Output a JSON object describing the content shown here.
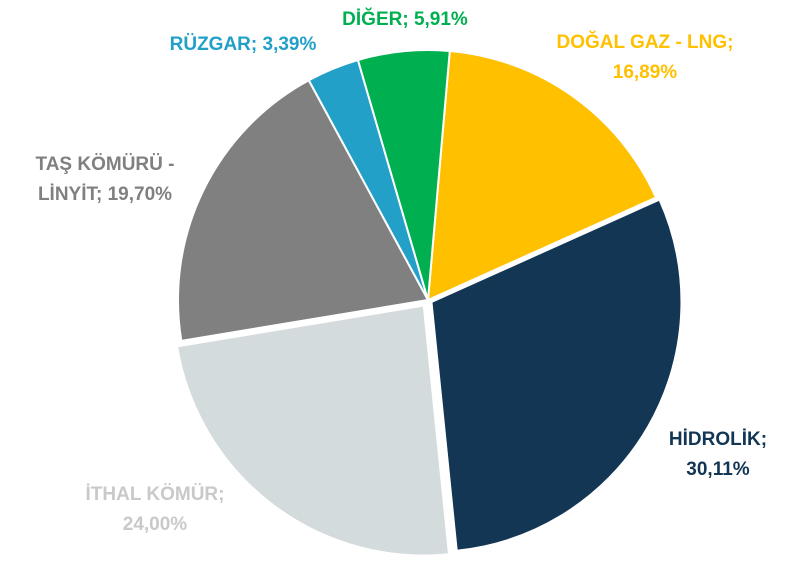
{
  "chart_data": {
    "type": "pie",
    "categories": [
      "DOĞAL GAZ - LNG",
      "HİDROLİK",
      "İTHAL KÖMÜR",
      "TAŞ KÖMÜRÜ - LİNYİT",
      "RÜZGAR",
      "DİĞER"
    ],
    "values": [
      16.89,
      30.11,
      24.0,
      19.7,
      3.39,
      5.91
    ],
    "value_labels": [
      "DOĞAL GAZ - LNG; 16,89%",
      "HİDROLİK; 30,11%",
      "İTHAL KÖMÜR; 24,00%",
      "TAŞ KÖMÜRÜ - LİNYİT; 19,70%",
      "RÜZGAR; 3,39%",
      "DİĞER; 5,91%"
    ],
    "colors": [
      "#FFC000",
      "#123654",
      "#D4DBDD",
      "#808080",
      "#23A0C8",
      "#00B050"
    ],
    "label_colors": [
      "#FFC000",
      "#123654",
      "#C9C9C9",
      "#808080",
      "#23A0C8",
      "#00B050"
    ]
  }
}
